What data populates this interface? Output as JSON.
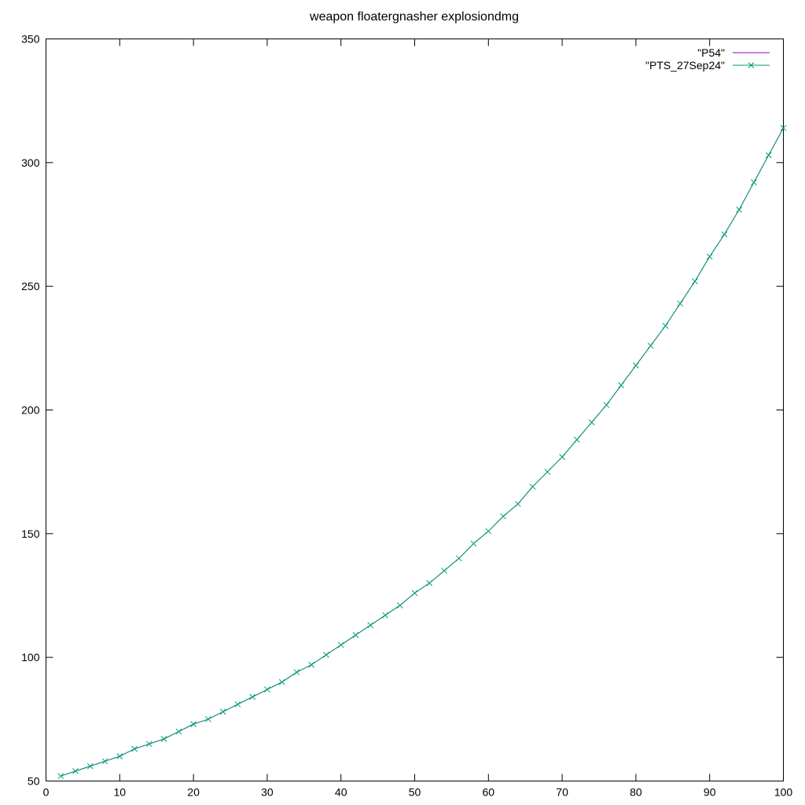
{
  "chart_data": {
    "type": "line",
    "title": "weapon floatergnasher explosiondmg",
    "xlabel": "",
    "ylabel": "",
    "xlim": [
      0,
      100
    ],
    "ylim": [
      50,
      350
    ],
    "xticks": [
      0,
      10,
      20,
      30,
      40,
      50,
      60,
      70,
      80,
      90,
      100
    ],
    "yticks": [
      50,
      100,
      150,
      200,
      250,
      300,
      350
    ],
    "grid": false,
    "legend_position": "top-right",
    "x": [
      2,
      4,
      6,
      8,
      10,
      12,
      14,
      16,
      18,
      20,
      22,
      24,
      26,
      28,
      30,
      32,
      34,
      36,
      38,
      40,
      42,
      44,
      46,
      48,
      50,
      52,
      54,
      56,
      58,
      60,
      62,
      64,
      66,
      68,
      70,
      72,
      74,
      76,
      78,
      80,
      82,
      84,
      86,
      88,
      90,
      92,
      94,
      96,
      98,
      100
    ],
    "series": [
      {
        "name": "\"P54\"",
        "color": "#9400d3",
        "marker": "none",
        "values": [
          52,
          54,
          56,
          58,
          60,
          63,
          65,
          67,
          70,
          73,
          75,
          78,
          81,
          84,
          87,
          90,
          94,
          97,
          101,
          105,
          109,
          113,
          117,
          121,
          126,
          130,
          135,
          140,
          146,
          151,
          157,
          162,
          169,
          175,
          181,
          188,
          195,
          202,
          210,
          218,
          226,
          234,
          243,
          252,
          262,
          271,
          281,
          292,
          303,
          314
        ]
      },
      {
        "name": "\"PTS_27Sep24\"",
        "color": "#009e73",
        "marker": "x",
        "values": [
          52,
          54,
          56,
          58,
          60,
          63,
          65,
          67,
          70,
          73,
          75,
          78,
          81,
          84,
          87,
          90,
          94,
          97,
          101,
          105,
          109,
          113,
          117,
          121,
          126,
          130,
          135,
          140,
          146,
          151,
          157,
          162,
          169,
          175,
          181,
          188,
          195,
          202,
          210,
          218,
          226,
          234,
          243,
          252,
          262,
          271,
          281,
          292,
          303,
          314
        ]
      }
    ]
  }
}
